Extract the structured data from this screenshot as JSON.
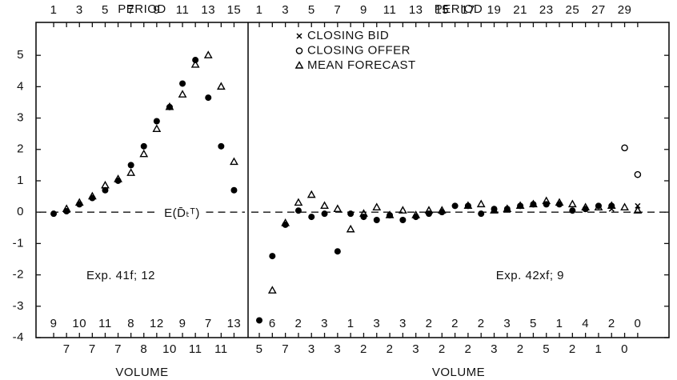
{
  "chart_data": [
    {
      "type": "scatter",
      "x_label_top": "PERIOD",
      "x_label_bottom": "VOLUME",
      "x": [
        1,
        2,
        3,
        4,
        5,
        6,
        7,
        8,
        9,
        10,
        11,
        12,
        13,
        14,
        15
      ],
      "xlim": [
        -0.37,
        16.09
      ],
      "xticks": [
        1,
        3,
        5,
        7,
        9,
        11,
        13,
        15
      ],
      "ylim": [
        -4,
        6.05
      ],
      "yticks": [
        -4,
        -3,
        -2,
        -1,
        0,
        1,
        2,
        3,
        4,
        5
      ],
      "volumes": [
        9,
        7,
        10,
        7,
        11,
        7,
        8,
        8,
        12,
        10,
        9,
        11,
        7,
        11,
        13
      ],
      "reference_line": {
        "value": 0,
        "label": "E(D̄ₜᵀ)"
      },
      "annotation": "Exp. 41f; 12",
      "series": [
        {
          "marker": "dot",
          "color": "#000000",
          "values": [
            -0.05,
            0.03,
            0.25,
            0.45,
            0.7,
            1.0,
            1.5,
            2.1,
            2.9,
            3.35,
            4.1,
            4.85,
            3.65,
            2.1,
            0.7
          ]
        },
        {
          "marker": "triangle",
          "color": "#000000",
          "values": [
            null,
            0.1,
            0.3,
            0.5,
            0.85,
            1.05,
            1.25,
            1.85,
            2.65,
            3.35,
            3.75,
            4.7,
            5.0,
            4.0,
            1.6
          ]
        }
      ]
    },
    {
      "type": "scatter",
      "x_label_top": "PERIOD",
      "x_label_bottom": "VOLUME",
      "x": [
        1,
        2,
        3,
        4,
        5,
        6,
        7,
        8,
        9,
        10,
        11,
        12,
        13,
        14,
        15,
        16,
        17,
        18,
        19,
        20,
        21,
        22,
        23,
        24,
        25,
        26,
        27,
        28,
        29,
        30
      ],
      "xlim": [
        0.14,
        32.4
      ],
      "xticks": [
        1,
        3,
        5,
        7,
        9,
        11,
        13,
        15,
        17,
        19,
        21,
        23,
        25,
        27,
        29
      ],
      "ylim": [
        -4,
        6.05
      ],
      "yticks": [
        -4,
        -3,
        -2,
        -1,
        0,
        1,
        2,
        3,
        4,
        5
      ],
      "volumes": [
        5,
        6,
        7,
        2,
        3,
        3,
        3,
        1,
        2,
        3,
        2,
        3,
        3,
        2,
        2,
        2,
        2,
        2,
        3,
        3,
        2,
        5,
        5,
        1,
        2,
        4,
        1,
        2,
        0,
        0
      ],
      "reference_line": {
        "value": 0
      },
      "annotation": "Exp. 42xf; 9",
      "legend": "upper left",
      "series": [
        {
          "marker": "dot",
          "color": "#000000",
          "values": [
            -3.45,
            -1.4,
            -0.4,
            0.05,
            -0.15,
            -0.05,
            -1.25,
            -0.05,
            -0.15,
            -0.25,
            -0.1,
            -0.25,
            -0.15,
            -0.05,
            0.0,
            0.2,
            0.2,
            -0.05,
            0.1,
            0.1,
            0.2,
            0.25,
            0.25,
            0.25,
            0.05,
            0.1,
            0.2,
            0.2,
            null,
            null
          ]
        },
        {
          "name": "CLOSING BID",
          "marker": "cross",
          "color": "#000000",
          "values": [
            null,
            null,
            null,
            null,
            null,
            null,
            null,
            null,
            null,
            null,
            null,
            null,
            null,
            null,
            null,
            null,
            null,
            null,
            null,
            null,
            null,
            null,
            null,
            null,
            null,
            null,
            null,
            0.1,
            null,
            0.2
          ]
        },
        {
          "name": "CLOSING OFFER",
          "marker": "circle",
          "color": "#000000",
          "values": [
            null,
            null,
            null,
            null,
            null,
            null,
            null,
            null,
            null,
            null,
            null,
            null,
            null,
            null,
            null,
            null,
            null,
            null,
            null,
            null,
            null,
            null,
            null,
            null,
            null,
            null,
            null,
            null,
            2.05,
            1.2
          ]
        },
        {
          "name": "MEAN FORECAST",
          "marker": "triangle",
          "color": "#000000",
          "values": [
            null,
            -2.5,
            -0.35,
            0.3,
            0.55,
            0.2,
            0.1,
            -0.55,
            -0.05,
            0.15,
            -0.1,
            0.05,
            -0.1,
            0.05,
            0.05,
            null,
            0.2,
            0.25,
            0.05,
            0.1,
            0.2,
            0.25,
            0.35,
            0.3,
            0.25,
            0.15,
            0.15,
            0.2,
            0.15,
            0.05
          ]
        }
      ]
    }
  ]
}
